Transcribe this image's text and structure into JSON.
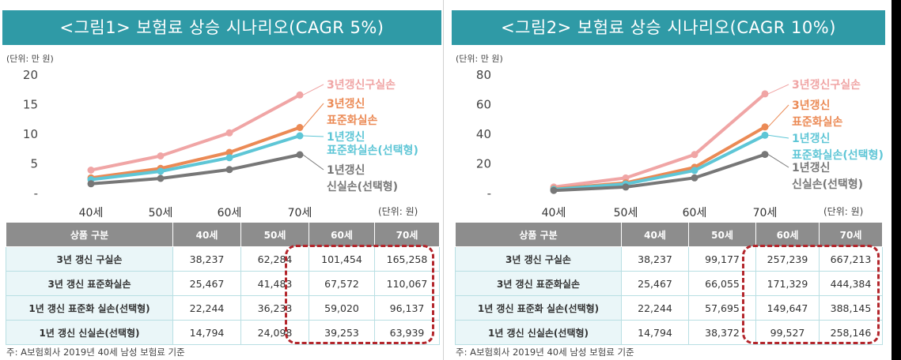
{
  "chart_data": [
    {
      "type": "line",
      "title": "<그림1> 보험료 상승 시나리오(CAGR 5%)",
      "unit_top": "(단위: 만 원)",
      "unit_table": "(단위: 원)",
      "categories": [
        "40세",
        "50세",
        "60세",
        "70세"
      ],
      "ylim": [
        0,
        20
      ],
      "yticks": [
        "20",
        "15",
        "10",
        "5",
        "-"
      ],
      "ytick_values": [
        20,
        15,
        10,
        5,
        0
      ],
      "series": [
        {
          "name_lines": [
            "3년갱신구실손"
          ],
          "color": "#f0a5a5",
          "values": [
            3.8,
            6.2,
            10.1,
            16.5
          ]
        },
        {
          "name_lines": [
            "3년갱신",
            "표준화실손"
          ],
          "color": "#eb8a55",
          "values": [
            2.5,
            4.1,
            6.8,
            11.0
          ]
        },
        {
          "name_lines": [
            "1년갱신",
            "표준화실손(선택형)"
          ],
          "color": "#5ec6d6",
          "values": [
            2.2,
            3.6,
            5.9,
            9.6
          ]
        },
        {
          "name_lines": [
            "1년갱신",
            "신실손(선택형)"
          ],
          "color": "#777777",
          "values": [
            1.5,
            2.4,
            3.9,
            6.4
          ]
        }
      ],
      "table": {
        "header": [
          "상품 구분",
          "40세",
          "50세",
          "60세",
          "70세"
        ],
        "rows": [
          [
            "3년 갱신 구실손",
            "38,237",
            "62,284",
            "101,454",
            "165,258"
          ],
          [
            "3년 갱신 표준화실손",
            "25,467",
            "41,483",
            "67,572",
            "110,067"
          ],
          [
            "1년 갱신 표준화 실손(선택형)",
            "22,244",
            "36,233",
            "59,020",
            "96,137"
          ],
          [
            "1년 갱신 신실손(선택형)",
            "14,794",
            "24,098",
            "39,253",
            "63,939"
          ]
        ]
      },
      "footnote": "주: A보험회사 2019년 40세 남성 보험료 기준"
    },
    {
      "type": "line",
      "title": "<그림2> 보험료 상승 시나리오(CAGR 10%)",
      "unit_top": "(단위: 만 원)",
      "unit_table": "(단위: 원)",
      "categories": [
        "40세",
        "50세",
        "60세",
        "70세"
      ],
      "ylim": [
        0,
        80
      ],
      "yticks": [
        "80",
        "60",
        "40",
        "20",
        "-"
      ],
      "ytick_values": [
        80,
        60,
        40,
        20,
        0
      ],
      "series": [
        {
          "name_lines": [
            "3년갱신구실손"
          ],
          "color": "#f0a5a5",
          "values": [
            3.8,
            9.9,
            25.7,
            66.7
          ]
        },
        {
          "name_lines": [
            "3년갱신",
            "표준화실손"
          ],
          "color": "#eb8a55",
          "values": [
            2.5,
            6.6,
            17.1,
            44.4
          ]
        },
        {
          "name_lines": [
            "1년갱신",
            "표준화실손(선택형)"
          ],
          "color": "#5ec6d6",
          "values": [
            2.2,
            5.8,
            15.0,
            38.8
          ]
        },
        {
          "name_lines": [
            "1년갱신",
            "신실손(선택형)"
          ],
          "color": "#777777",
          "values": [
            1.5,
            3.8,
            10.0,
            25.8
          ]
        }
      ],
      "table": {
        "header": [
          "상품 구분",
          "40세",
          "50세",
          "60세",
          "70세"
        ],
        "rows": [
          [
            "3년 갱신 구실손",
            "38,237",
            "99,177",
            "257,239",
            "667,213"
          ],
          [
            "3년 갱신 표준화실손",
            "25,467",
            "66,055",
            "171,329",
            "444,384"
          ],
          [
            "1년 갱신 표준화 실손(선택형)",
            "22,244",
            "57,695",
            "149,647",
            "388,145"
          ],
          [
            "1년 갱신 신실손(선택형)",
            "14,794",
            "38,372",
            "99,527",
            "258,146"
          ]
        ]
      },
      "footnote": "주: A보험회사 2019년 40세 남성 보험료 기준"
    }
  ]
}
